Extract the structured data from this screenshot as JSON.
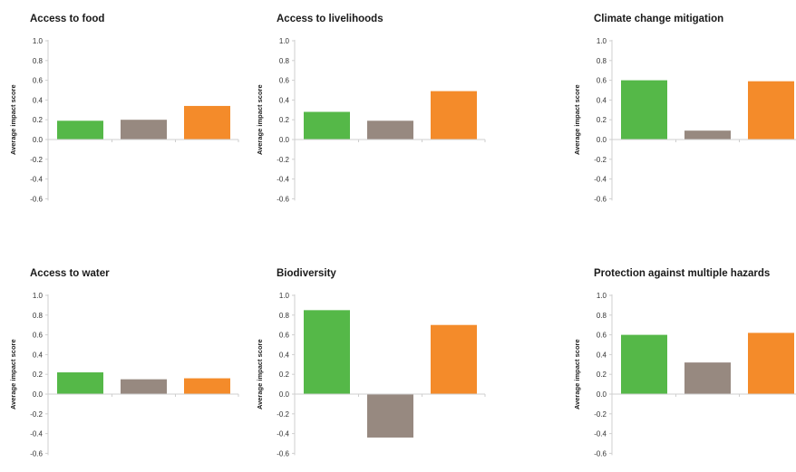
{
  "colors": {
    "green": "#55b848",
    "gray": "#978980",
    "orange": "#f48b2a",
    "axis": "#cfcfcf"
  },
  "chart_data": [
    {
      "type": "bar",
      "title": "Access to food",
      "ylabel": "Average impact score",
      "ylim": [
        -0.6,
        1.0
      ],
      "yticks": [
        "1.0",
        "0.8",
        "0.6",
        "0.4",
        "0.2",
        "0.0",
        "-0.2",
        "-0.4",
        "-0.6"
      ],
      "values": [
        0.19,
        0.2,
        0.34
      ]
    },
    {
      "type": "bar",
      "title": "Access to livelihoods",
      "ylabel": "Average impact score",
      "ylim": [
        -0.6,
        1.0
      ],
      "yticks": [
        "1.0",
        "0.8",
        "0.6",
        "0.4",
        "0.2",
        "0.0",
        "-0.2",
        "-0.4",
        "-0.6"
      ],
      "values": [
        0.28,
        0.19,
        0.49
      ]
    },
    {
      "type": "bar",
      "title": "Climate change mitigation",
      "ylabel": "Average impact score",
      "ylim": [
        -0.6,
        1.0
      ],
      "yticks": [
        "1.0",
        "0.8",
        "0.6",
        "0.4",
        "0.2",
        "0.0",
        "-0.2",
        "-0.4",
        "-0.6"
      ],
      "values": [
        0.6,
        0.09,
        0.59
      ]
    },
    {
      "type": "bar",
      "title": "Access to water",
      "ylabel": "Average impact score",
      "ylim": [
        -0.6,
        1.0
      ],
      "yticks": [
        "1.0",
        "0.8",
        "0.6",
        "0.4",
        "0.2",
        "0.0",
        "-0.2",
        "-0.4",
        "-0.6"
      ],
      "values": [
        0.22,
        0.15,
        0.16
      ]
    },
    {
      "type": "bar",
      "title": "Biodiversity",
      "ylabel": "Average impact score",
      "ylim": [
        -0.6,
        1.0
      ],
      "yticks": [
        "1.0",
        "0.8",
        "0.6",
        "0.4",
        "0.2",
        "0.0",
        "-0.2",
        "-0.4",
        "-0.6"
      ],
      "values": [
        0.85,
        -0.44,
        0.7
      ]
    },
    {
      "type": "bar",
      "title": "Protection against multiple hazards",
      "ylabel": "Average impact score",
      "ylim": [
        -0.6,
        1.0
      ],
      "yticks": [
        "1.0",
        "0.8",
        "0.6",
        "0.4",
        "0.2",
        "0.0",
        "-0.2",
        "-0.4",
        "-0.6"
      ],
      "values": [
        0.6,
        0.32,
        0.62
      ]
    }
  ]
}
